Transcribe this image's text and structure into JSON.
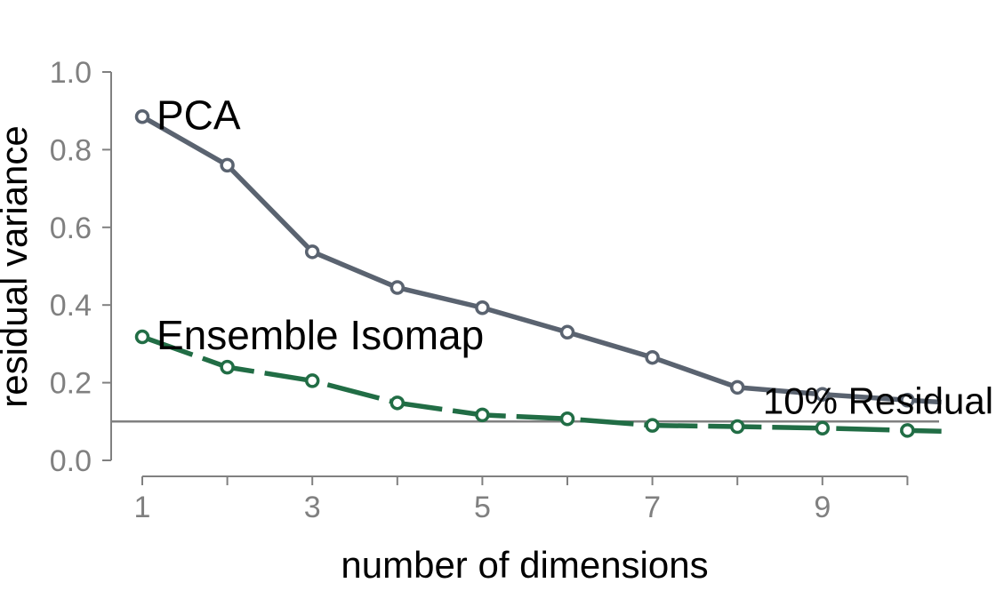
{
  "chart_data": {
    "type": "line",
    "xlabel": "number of dimensions",
    "ylabel": "residual variance",
    "xlim": [
      1,
      10.4
    ],
    "ylim": [
      0,
      1
    ],
    "x_ticks": [
      1,
      2,
      3,
      4,
      5,
      6,
      7,
      8,
      9,
      10
    ],
    "x_tick_labels": [
      "1",
      "",
      "3",
      "",
      "5",
      "",
      "7",
      "",
      "9",
      ""
    ],
    "y_ticks": [
      0.0,
      0.2,
      0.4,
      0.6,
      0.8,
      1.0
    ],
    "y_tick_labels": [
      "0.0",
      "0.2",
      "0.4",
      "0.6",
      "0.8",
      "1.0"
    ],
    "grid": false,
    "series": [
      {
        "name": "PCA",
        "color": "#5a6370",
        "line_style": "solid",
        "x": [
          1,
          2,
          3,
          4,
          5,
          6,
          7,
          8,
          9,
          10,
          10.4
        ],
        "y": [
          0.885,
          0.76,
          0.537,
          0.445,
          0.393,
          0.33,
          0.265,
          0.188,
          0.17,
          0.155,
          0.15
        ]
      },
      {
        "name": "Ensemble Isomap",
        "color": "#216d45",
        "line_style": "dashed",
        "x": [
          1,
          2,
          3,
          4,
          5,
          6,
          7,
          8,
          9,
          10,
          10.4
        ],
        "y": [
          0.318,
          0.24,
          0.205,
          0.148,
          0.117,
          0.107,
          0.09,
          0.087,
          0.083,
          0.077,
          0.075
        ]
      }
    ],
    "markers_at_x": [
      1,
      2,
      3,
      4,
      5,
      6,
      7,
      8,
      9,
      10
    ],
    "annotations": [
      {
        "text": "10% Residual",
        "y": 0.1,
        "type": "hline",
        "color": "#808080",
        "label_x": 8.3,
        "label_y": 0.17
      }
    ]
  }
}
